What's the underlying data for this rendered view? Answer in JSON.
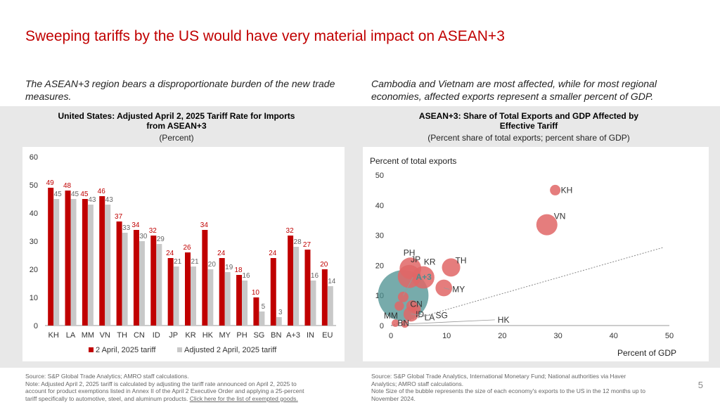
{
  "page": {
    "title": "Sweeping tariffs by the US would have very material impact on ASEAN+3",
    "page_number": "5",
    "left_subhead": "The ASEAN+3 region bears a disproportionate burden of the new trade measures.",
    "right_subhead": "Cambodia and Vietnam are most affected, while for most regional economies, affected exports represent a smaller percent of GDP.",
    "left_chart_title_1": "United States: Adjusted April 2, 2025 Tariff Rate for Imports",
    "left_chart_title_2": "from ASEAN+3",
    "left_chart_subtitle": "(Percent)",
    "right_chart_title_1": "ASEAN+3: Share of Total Exports and GDP Affected by",
    "right_chart_title_2": "Effective Tariff",
    "right_chart_subtitle": "(Percent share of total exports; percent share of GDP)",
    "left_note_1": "Source: S&P Global Trade Analytics; AMRO staff calculations.",
    "left_note_2": "Note: Adjusted April 2, 2025 tariff is calculated by adjusting the tariff rate announced on April 2, 2025 to",
    "left_note_3": "account for product exemptions listed in Annex II of the April 2 Executive Order and applying a 25-percent",
    "left_note_4": "tariff specifically to automotive, steel, and aluminum products.",
    "left_note_link": "Click here for the list of exempted goods.",
    "right_note_1": "Source: S&P Global Trade Analytics, International Monetary Fund; National authorities via Haver",
    "right_note_2": "Analytics; AMRO staff calculations.",
    "right_note_3": "Note Size of the bubble represents the size of each economy's exports to the US in the 12 months up to",
    "right_note_4": "November 2024."
  },
  "colors": {
    "red": "#c00000",
    "gray": "#c8c8c8",
    "bubble": "#e06666",
    "teal": "#4a8f8f",
    "band": "#e8e8e8"
  },
  "chart_data": [
    {
      "type": "bar",
      "title": "United States: Adjusted April 2, 2025 Tariff Rate for Imports from ASEAN+3",
      "subtitle": "(Percent)",
      "categories": [
        "KH",
        "LA",
        "MM",
        "VN",
        "TH",
        "CN",
        "ID",
        "JP",
        "KR",
        "HK",
        "MY",
        "PH",
        "SG",
        "BN",
        "A+3",
        "IN",
        "EU"
      ],
      "series": [
        {
          "name": "2 April, 2025 tariff",
          "values": [
            49,
            48,
            45,
            46,
            37,
            34,
            32,
            24,
            26,
            34,
            24,
            18,
            10,
            24,
            32,
            27,
            20
          ]
        },
        {
          "name": "Adjusted 2 April, 2025 tariff",
          "values": [
            45,
            45,
            43,
            43,
            33,
            30,
            29,
            21,
            21,
            20,
            19,
            16,
            5,
            3,
            28,
            16,
            14
          ]
        }
      ],
      "ylim": [
        0,
        60
      ],
      "yticks": [
        0,
        10,
        20,
        30,
        40,
        50,
        60
      ],
      "legend": "bottom"
    },
    {
      "type": "scatter",
      "title": "ASEAN+3: Share of Total Exports and GDP Affected by Effective Tariff",
      "subtitle": "(Percent share of total exports; percent share of GDP)",
      "xlabel": "Percent of GDP",
      "ylabel": "Percent of total exports",
      "xlim": [
        0,
        50
      ],
      "ylim": [
        0,
        50
      ],
      "xticks": [
        0,
        10,
        20,
        30,
        40,
        50
      ],
      "yticks": [
        0,
        10,
        20,
        30,
        40,
        50
      ],
      "trendline": true,
      "points": [
        {
          "label": "KH",
          "x": 29.5,
          "y": 45,
          "size": 1
        },
        {
          "label": "VN",
          "x": 28,
          "y": 33.5,
          "size": 4
        },
        {
          "label": "TH",
          "x": 10.8,
          "y": 19.3,
          "size": 3
        },
        {
          "label": "KR",
          "x": 5.8,
          "y": 16,
          "size": 4.5
        },
        {
          "label": "PH",
          "x": 3.5,
          "y": 19,
          "size": 4.2
        },
        {
          "label": "JP",
          "x": 3.3,
          "y": 16.3,
          "size": 4.8
        },
        {
          "label": "A+3",
          "x": 2.2,
          "y": 10,
          "size": 16
        },
        {
          "label": "MY",
          "x": 9.5,
          "y": 12.5,
          "size": 2.5
        },
        {
          "label": "CN",
          "x": 2.2,
          "y": 9.5,
          "size": 1
        },
        {
          "label": "MM",
          "x": 1.5,
          "y": 6.5,
          "size": 0.8
        },
        {
          "label": "ID",
          "x": 3.8,
          "y": 6.5,
          "size": 1.2
        },
        {
          "label": "LA",
          "x": 4.5,
          "y": 5.5,
          "size": 0.8
        },
        {
          "label": "SG",
          "x": 3.6,
          "y": 3.8,
          "size": 2
        },
        {
          "label": "BN",
          "x": 0.8,
          "y": 0.8,
          "size": 0.5
        },
        {
          "label": "HK",
          "x": 2.5,
          "y": 0.5,
          "size": 0.5
        }
      ]
    }
  ]
}
